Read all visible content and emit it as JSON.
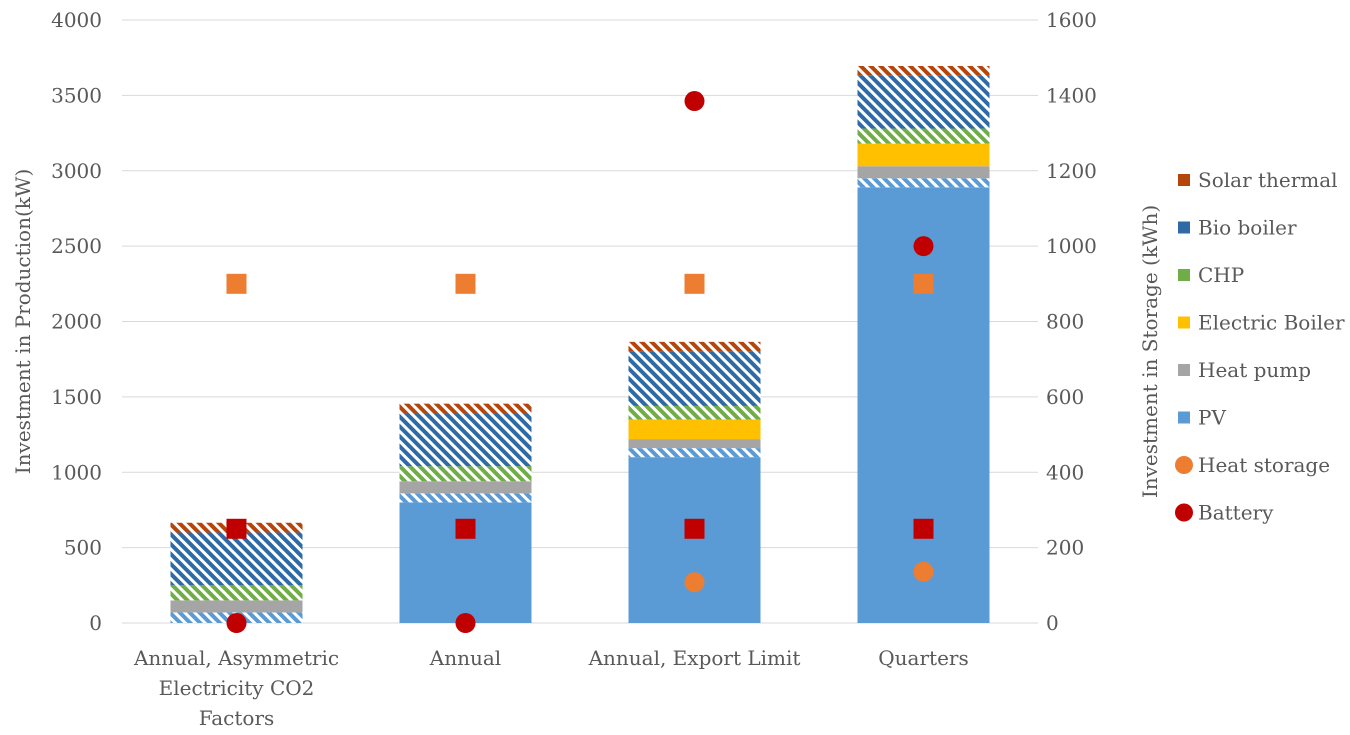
{
  "chart_data": {
    "type": "bar",
    "stacked": true,
    "categories": [
      "Annual, Asymmetric Electricity CO2 Factors",
      "Annual",
      "Annual, Export Limit",
      "Quarters"
    ],
    "category_lines": [
      [
        "Annual, Asymmetric",
        "Electricity CO2",
        "Factors"
      ],
      [
        "Annual"
      ],
      [
        "Annual, Export Limit"
      ],
      [
        "Quarters"
      ]
    ],
    "ylabel": "Investment in Production(kW)",
    "ylim": [
      0,
      4000
    ],
    "yticks": [
      0,
      500,
      1000,
      1500,
      2000,
      2500,
      3000,
      3500,
      4000
    ],
    "y2label": "Investment in Storage (kWh)",
    "y2lim": [
      0,
      1600
    ],
    "y2ticks": [
      0,
      200,
      400,
      600,
      800,
      1000,
      1200,
      1400,
      1600
    ],
    "grid": true,
    "legend_position": "right",
    "series": [
      {
        "name": "PV",
        "axis": "left",
        "color": "#5B9BD5",
        "values": [
          0,
          800,
          1100,
          2890
        ]
      },
      {
        "name": "PV",
        "axis": "left",
        "color": "#5B9BD5",
        "pattern": "hatched",
        "in_legend": false,
        "values": [
          70,
          60,
          60,
          60
        ]
      },
      {
        "name": "Heat pump",
        "axis": "left",
        "color": "#A5A5A5",
        "values": [
          80,
          80,
          60,
          80
        ]
      },
      {
        "name": "Electric Boiler",
        "axis": "left",
        "color": "#FFC000",
        "values": [
          0,
          0,
          130,
          150
        ]
      },
      {
        "name": "CHP",
        "axis": "left",
        "color": "#70AD47",
        "pattern": "hatched",
        "values": [
          100,
          100,
          90,
          100
        ]
      },
      {
        "name": "Bio boiler",
        "axis": "left",
        "color": "#2E6BA6",
        "pattern": "hatched",
        "values": [
          350,
          350,
          360,
          350
        ]
      },
      {
        "name": "Solar thermal",
        "axis": "left",
        "color": "#B5450A",
        "pattern": "hatched",
        "values": [
          65,
          65,
          65,
          65
        ]
      }
    ],
    "markers": [
      {
        "axis": "left",
        "shape": "square",
        "color": "#ED7D31",
        "values": [
          2250,
          2250,
          2250,
          2250
        ]
      },
      {
        "axis": "left",
        "shape": "square",
        "color": "#C00000",
        "values": [
          625,
          625,
          625,
          625
        ]
      },
      {
        "name": "Heat storage",
        "axis": "right",
        "shape": "circle",
        "color": "#ED7D31",
        "values": [
          null,
          null,
          108,
          136
        ]
      },
      {
        "name": "Battery",
        "axis": "right",
        "shape": "circle",
        "color": "#C00000",
        "values": [
          0,
          0,
          1385,
          1000
        ]
      }
    ],
    "legend": [
      {
        "label": "Solar thermal",
        "shape": "square",
        "color": "#B5450A"
      },
      {
        "label": "Bio boiler",
        "shape": "square",
        "color": "#2E6BA6"
      },
      {
        "label": "CHP",
        "shape": "square",
        "color": "#70AD47"
      },
      {
        "label": "Electric Boiler",
        "shape": "square",
        "color": "#FFC000"
      },
      {
        "label": "Heat pump",
        "shape": "square",
        "color": "#A5A5A5"
      },
      {
        "label": "PV",
        "shape": "square",
        "color": "#5B9BD5"
      },
      {
        "label": "Heat storage",
        "shape": "circle",
        "color": "#ED7D31"
      },
      {
        "label": "Battery",
        "shape": "circle",
        "color": "#C00000"
      }
    ]
  }
}
